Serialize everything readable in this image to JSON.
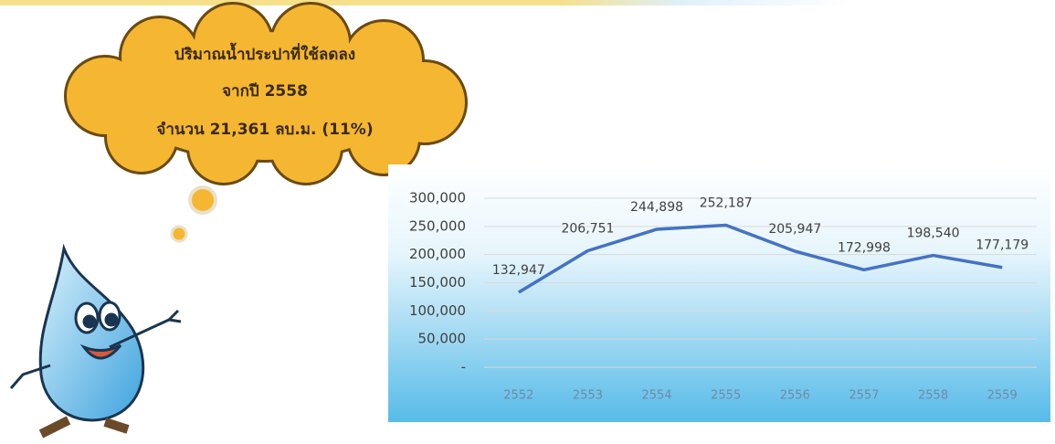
{
  "annotations": [
    "ปริมาณน้ำประปาที่ใช้ลดลง",
    "จากปี 2558",
    "จำนวน 21,361 ลบ.ม. (11%)"
  ],
  "chart_data": {
    "type": "line",
    "categories": [
      "2552",
      "2553",
      "2554",
      "2555",
      "2556",
      "2557",
      "2558",
      "2559"
    ],
    "values": [
      132947,
      206751,
      244898,
      252187,
      205947,
      172998,
      198540,
      177179
    ],
    "value_labels": [
      "132,947",
      "206,751",
      "244,898",
      "252,187",
      "205,947",
      "172,998",
      "198,540",
      "177,179"
    ],
    "color": "#4472c4",
    "ylim": [
      0,
      300000
    ],
    "yticks": [
      {
        "value": 0,
        "label": "-"
      },
      {
        "value": 50000,
        "label": "50,000"
      },
      {
        "value": 100000,
        "label": "100,000"
      },
      {
        "value": 150000,
        "label": "150,000"
      },
      {
        "value": 200000,
        "label": "200,000"
      },
      {
        "value": 250000,
        "label": "250,000"
      },
      {
        "value": 300000,
        "label": "300,000"
      }
    ],
    "grid": true
  }
}
